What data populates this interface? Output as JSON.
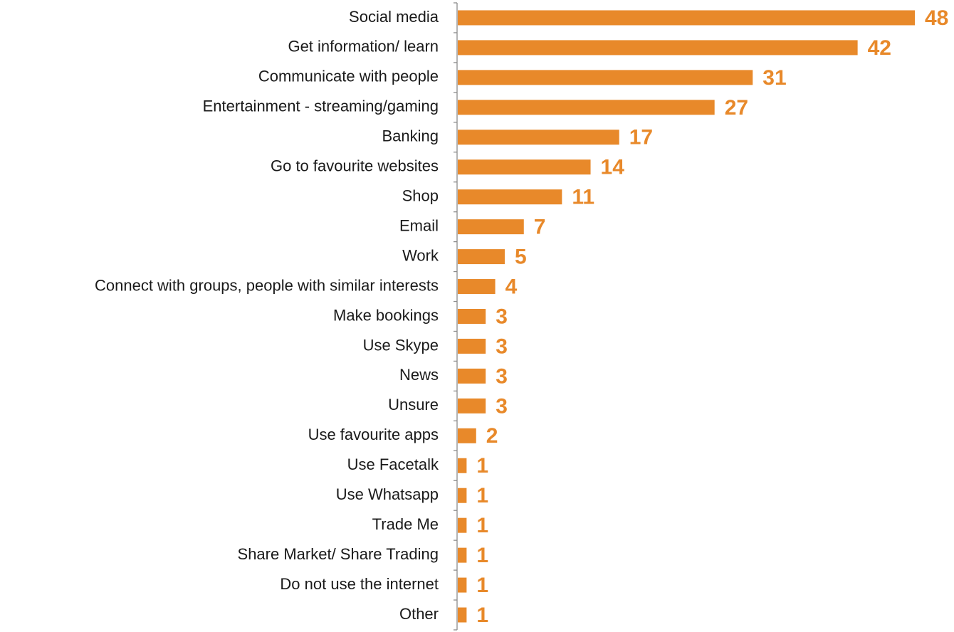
{
  "chart_data": {
    "type": "hbar",
    "color": "#e8892a",
    "categories": [
      "Social media",
      "Get information/ learn",
      "Communicate with people",
      "Entertainment - streaming/gaming",
      "Banking",
      "Go to favourite websites",
      "Shop",
      "Email",
      "Work",
      "Connect with groups, people with similar interests",
      "Make bookings",
      "Use Skype",
      "News",
      "Unsure",
      "Use favourite apps",
      "Use Facetalk",
      "Use Whatsapp",
      "Trade Me",
      "Share Market/ Share Trading",
      "Do not use the internet",
      "Other"
    ],
    "values": [
      48,
      42,
      31,
      27,
      17,
      14,
      11,
      7,
      5,
      4,
      3,
      3,
      3,
      3,
      2,
      1,
      1,
      1,
      1,
      1,
      1
    ]
  }
}
